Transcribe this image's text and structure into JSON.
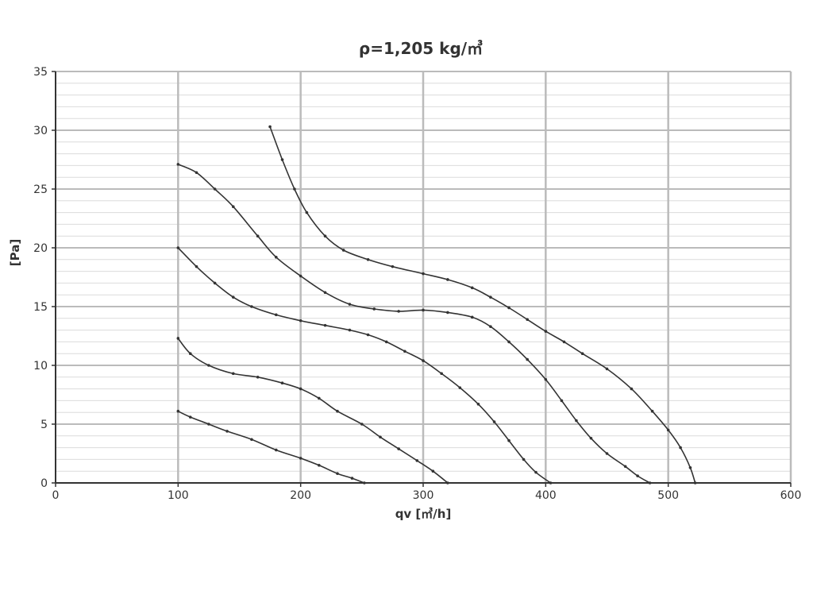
{
  "chart_data": {
    "type": "line",
    "title": "ρ=1,205 kg/㎥",
    "xlabel": "qv [㎥/h]",
    "ylabel": "[Pa]",
    "xlim": [
      0,
      600
    ],
    "ylim": [
      0,
      35
    ],
    "xticks": [
      "0",
      "100",
      "200",
      "300",
      "400",
      "500",
      "600"
    ],
    "yticks": [
      "0",
      "5",
      "10",
      "15",
      "20",
      "25",
      "30",
      "35"
    ],
    "grid": true,
    "line_color": "#333333",
    "grid_color": "#bbbbbb",
    "series": [
      {
        "points": [
          [
            100,
            6.1
          ],
          [
            110,
            5.6
          ],
          [
            125,
            5.0
          ],
          [
            140,
            4.4
          ],
          [
            160,
            3.7
          ],
          [
            180,
            2.8
          ],
          [
            200,
            2.1
          ],
          [
            215,
            1.5
          ],
          [
            230,
            0.8
          ],
          [
            242,
            0.4
          ],
          [
            252,
            0.0
          ]
        ]
      },
      {
        "points": [
          [
            100,
            12.3
          ],
          [
            110,
            11.0
          ],
          [
            125,
            10.0
          ],
          [
            145,
            9.3
          ],
          [
            165,
            9.0
          ],
          [
            185,
            8.5
          ],
          [
            200,
            8.0
          ],
          [
            215,
            7.2
          ],
          [
            230,
            6.1
          ],
          [
            250,
            5.0
          ],
          [
            265,
            3.9
          ],
          [
            280,
            2.9
          ],
          [
            295,
            1.9
          ],
          [
            308,
            1.0
          ],
          [
            320,
            0.0
          ]
        ]
      },
      {
        "points": [
          [
            100,
            20.0
          ],
          [
            115,
            18.4
          ],
          [
            130,
            17.0
          ],
          [
            145,
            15.8
          ],
          [
            160,
            15.0
          ],
          [
            180,
            14.3
          ],
          [
            200,
            13.8
          ],
          [
            220,
            13.4
          ],
          [
            240,
            13.0
          ],
          [
            255,
            12.6
          ],
          [
            270,
            12.0
          ],
          [
            285,
            11.2
          ],
          [
            300,
            10.4
          ],
          [
            315,
            9.3
          ],
          [
            330,
            8.1
          ],
          [
            345,
            6.7
          ],
          [
            358,
            5.2
          ],
          [
            370,
            3.6
          ],
          [
            382,
            2.0
          ],
          [
            392,
            0.9
          ],
          [
            404,
            0.0
          ]
        ]
      },
      {
        "points": [
          [
            100,
            27.1
          ],
          [
            115,
            26.4
          ],
          [
            130,
            25.0
          ],
          [
            145,
            23.5
          ],
          [
            165,
            21.0
          ],
          [
            180,
            19.2
          ],
          [
            200,
            17.6
          ],
          [
            220,
            16.2
          ],
          [
            240,
            15.2
          ],
          [
            260,
            14.8
          ],
          [
            280,
            14.6
          ],
          [
            300,
            14.7
          ],
          [
            320,
            14.5
          ],
          [
            340,
            14.1
          ],
          [
            355,
            13.3
          ],
          [
            370,
            12.0
          ],
          [
            385,
            10.5
          ],
          [
            400,
            8.8
          ],
          [
            413,
            7.0
          ],
          [
            425,
            5.3
          ],
          [
            437,
            3.8
          ],
          [
            450,
            2.5
          ],
          [
            465,
            1.4
          ],
          [
            475,
            0.6
          ],
          [
            485,
            0.0
          ]
        ]
      },
      {
        "points": [
          [
            175,
            30.3
          ],
          [
            185,
            27.5
          ],
          [
            195,
            25.0
          ],
          [
            205,
            23.0
          ],
          [
            220,
            21.0
          ],
          [
            235,
            19.8
          ],
          [
            255,
            19.0
          ],
          [
            275,
            18.4
          ],
          [
            300,
            17.8
          ],
          [
            320,
            17.3
          ],
          [
            340,
            16.6
          ],
          [
            355,
            15.8
          ],
          [
            370,
            14.9
          ],
          [
            385,
            13.9
          ],
          [
            400,
            12.9
          ],
          [
            415,
            12.0
          ],
          [
            430,
            11.0
          ],
          [
            450,
            9.7
          ],
          [
            470,
            8.0
          ],
          [
            487,
            6.1
          ],
          [
            500,
            4.5
          ],
          [
            510,
            3.0
          ],
          [
            518,
            1.3
          ],
          [
            522,
            0.0
          ]
        ]
      }
    ]
  }
}
